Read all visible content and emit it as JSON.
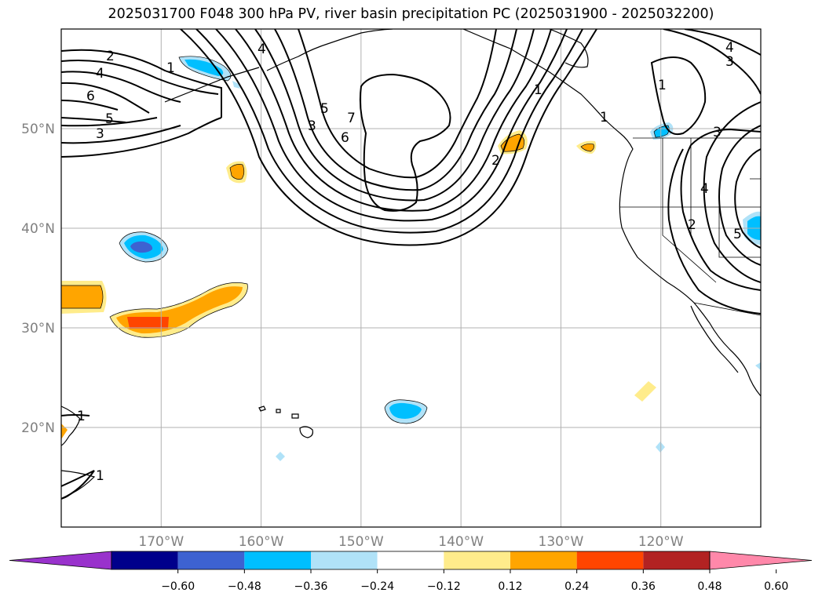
{
  "title": "2025031700 F048 300 hPa PV, river basin precipitation PC (2025031900 - 2025032200)",
  "map": {
    "lon_range": [
      -180,
      -110
    ],
    "lat_range": [
      10,
      60
    ],
    "grid_color": "#b0b0b0",
    "lat_ticks": [
      {
        "value": 50,
        "label": "50°N"
      },
      {
        "value": 40,
        "label": "40°N"
      },
      {
        "value": 30,
        "label": "30°N"
      },
      {
        "value": 20,
        "label": "20°N"
      }
    ],
    "lon_ticks": [
      {
        "value": -170,
        "label": "170°W"
      },
      {
        "value": -160,
        "label": "160°W"
      },
      {
        "value": -150,
        "label": "150°W"
      },
      {
        "value": -140,
        "label": "140°W"
      },
      {
        "value": -130,
        "label": "130°W"
      },
      {
        "value": -120,
        "label": "120°W"
      }
    ],
    "pv_contour_labels": [
      "2",
      "4",
      "6",
      "5",
      "3",
      "1",
      "4",
      "5",
      "3",
      "6",
      "7",
      "2",
      "1",
      "1",
      "3",
      "4",
      "2",
      "5",
      "4",
      "3",
      "1"
    ],
    "precip_fill_colors": {
      "neg_light": "#b0e2f8",
      "neg_mid": "#00bfff",
      "neg_strong": "#3d62d1",
      "pos_light": "#ffec8b",
      "pos_mid": "#ffa500",
      "pos_strong": "#ff4500"
    }
  },
  "colorbar": {
    "colors": [
      "#9932cc",
      "#00008b",
      "#3d62d1",
      "#00bfff",
      "#b0e2f8",
      "#ffffff",
      "#ffec8b",
      "#ffa500",
      "#ff4500",
      "#b22222",
      "#ff88aa"
    ],
    "tick_labels": [
      "−0.60",
      "−0.48",
      "−0.36",
      "−0.24",
      "−0.12",
      "0.12",
      "0.24",
      "0.36",
      "0.48",
      "0.60"
    ]
  }
}
